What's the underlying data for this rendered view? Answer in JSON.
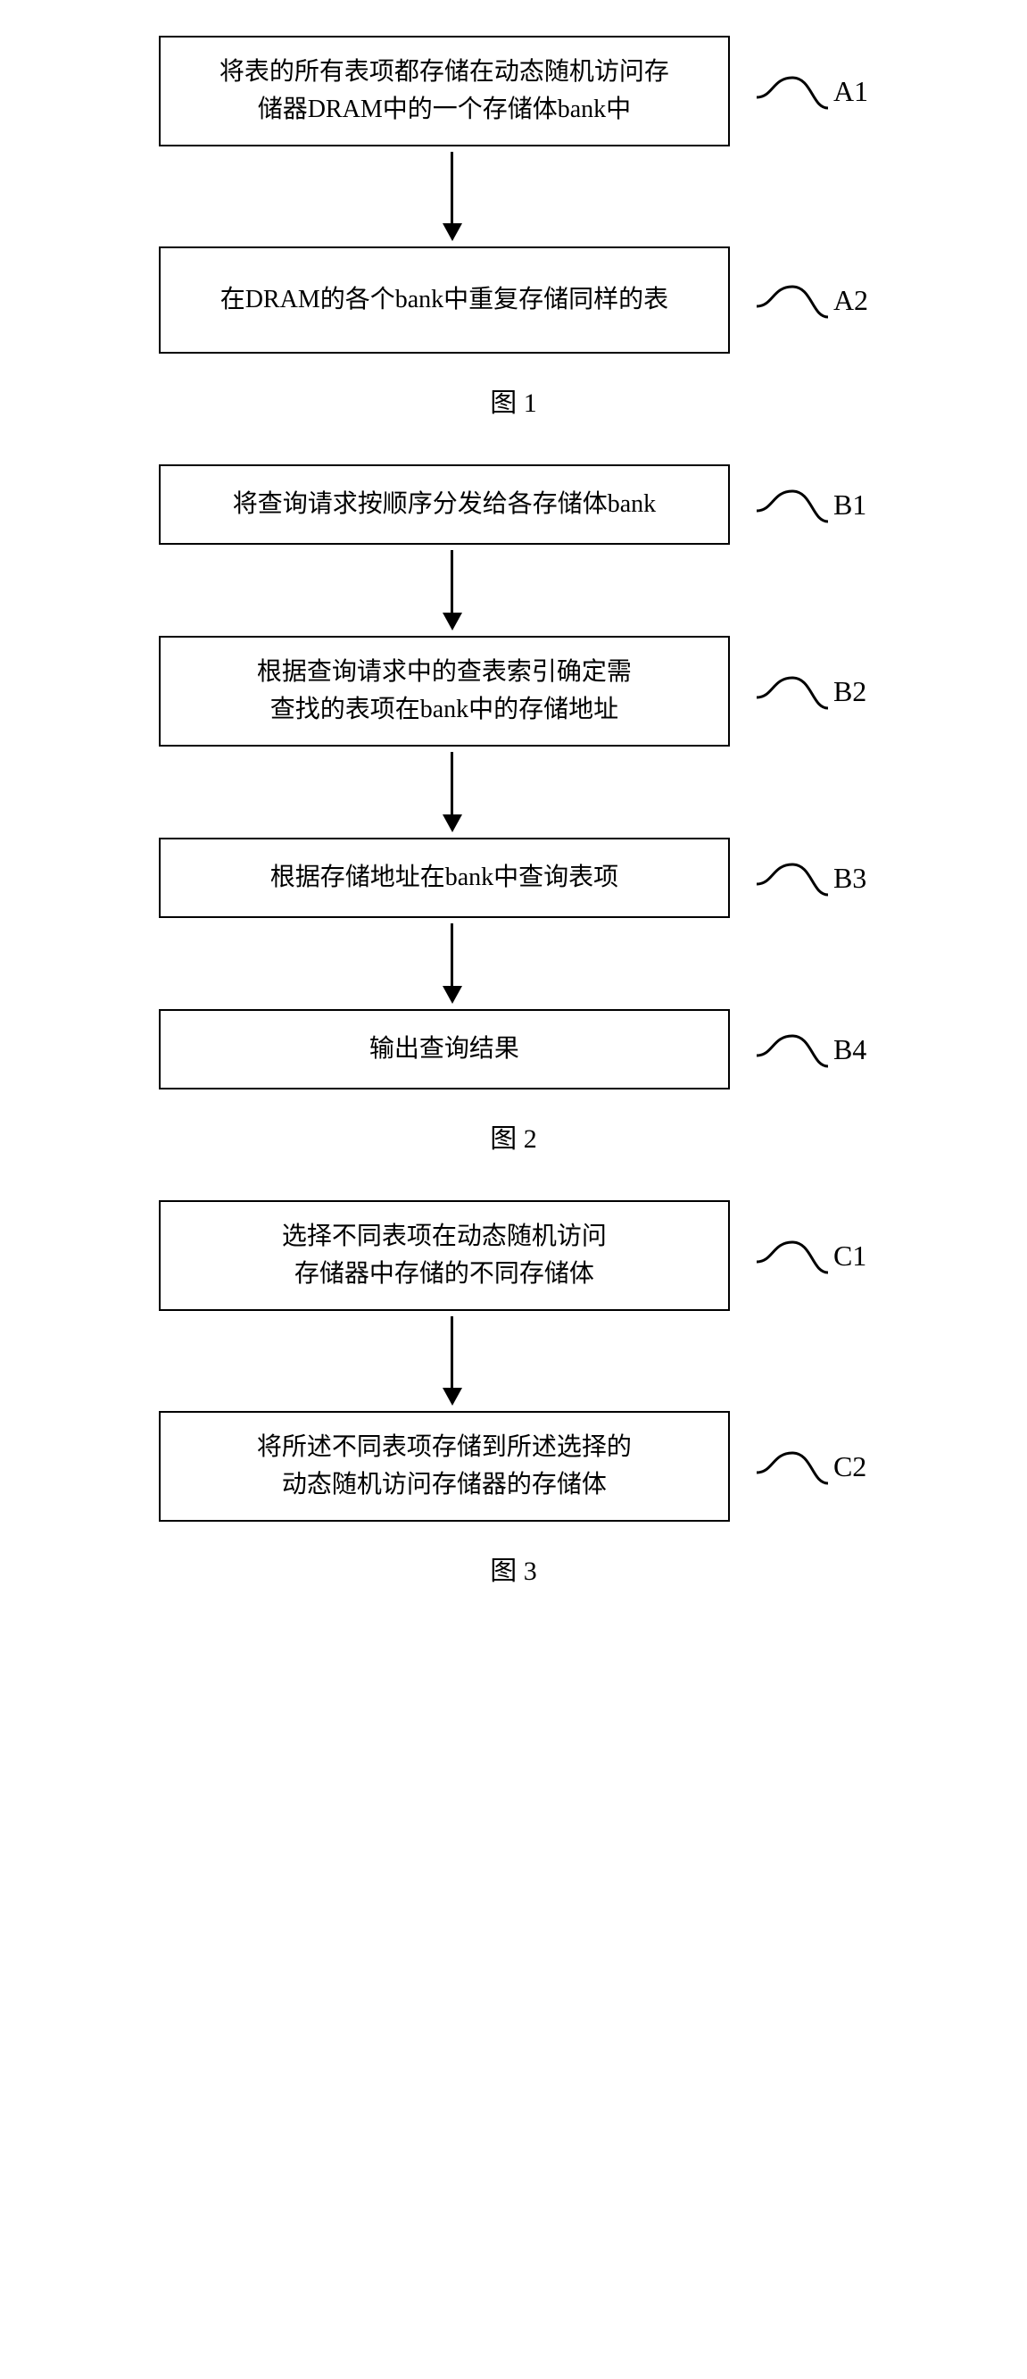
{
  "figures": [
    {
      "id": "fig1",
      "caption": "图 1",
      "box_width_class": "box-wide",
      "arrow_height": 80,
      "steps": [
        {
          "text": "将表的所有表项都存储在动态随机访问存\n储器DRAM中的一个存储体bank中",
          "label": "A1"
        },
        {
          "text": "在DRAM的各个bank中重复存储同样的表",
          "label": "A2"
        }
      ]
    },
    {
      "id": "fig2",
      "caption": "图 2",
      "box_width_class": "box-mid",
      "arrow_height": 70,
      "steps": [
        {
          "text": "将查询请求按顺序分发给各存储体bank",
          "label": "B1"
        },
        {
          "text": "根据查询请求中的查表索引确定需\n查找的表项在bank中的存储地址",
          "label": "B2"
        },
        {
          "text": "根据存储地址在bank中查询表项",
          "label": "B3"
        },
        {
          "text": "输出查询结果",
          "label": "B4"
        }
      ]
    },
    {
      "id": "fig3",
      "caption": "图 3",
      "box_width_class": "box-wide",
      "arrow_height": 80,
      "steps": [
        {
          "text": "选择不同表项在动态随机访问\n存储器中存储的不同存储体",
          "label": "C1"
        },
        {
          "text": "将所述不同表项存储到所述选择的\n动态随机访问存储器的存储体",
          "label": "C2"
        }
      ]
    }
  ],
  "style": {
    "box_border_color": "#000000",
    "box_bg_color": "#ffffff",
    "arrow_color": "#000000",
    "text_color": "#000000",
    "font_size_box": 28,
    "font_size_label": 32,
    "font_size_caption": 30
  }
}
